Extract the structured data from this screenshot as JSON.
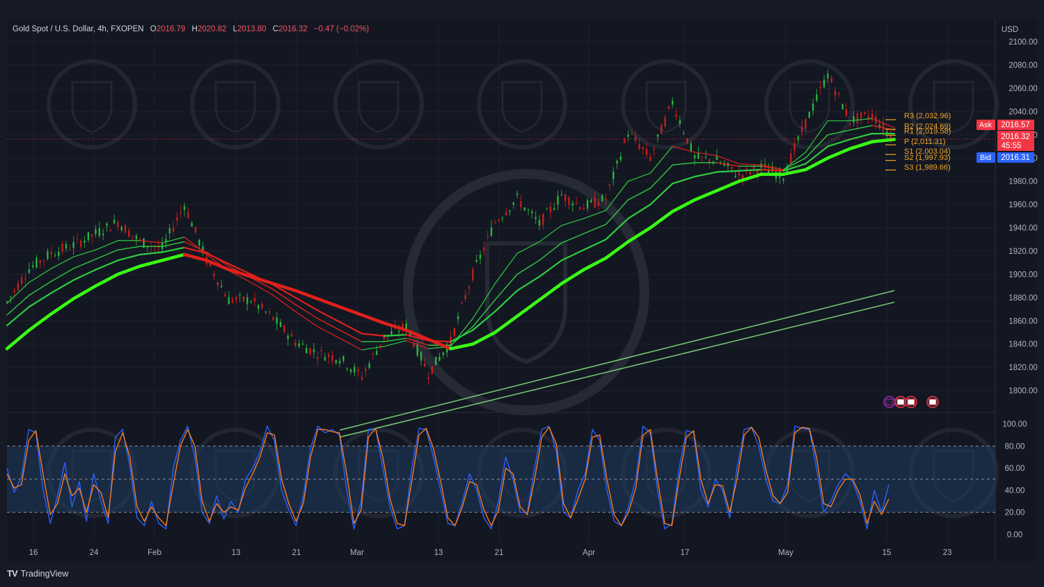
{
  "header": {
    "symbol": "Gold Spot / U.S. Dollar, 4h, FXOPEN",
    "open_label": "O",
    "open": "2016.79",
    "high_label": "H",
    "high": "2020.82",
    "low_label": "L",
    "low": "2013.80",
    "close_label": "C",
    "close": "2016.32",
    "change": "−0.47 (−0.02%)"
  },
  "currency": "USD",
  "brand": {
    "logo": "TV",
    "name": "TradingView"
  },
  "colors": {
    "background": "#131722",
    "grid": "#1e222d",
    "text": "#b2b5be",
    "bull": "#2ecc40",
    "bull_bright": "#39ff14",
    "bear": "#e0201c",
    "pivot": "#f5a623",
    "ask": "#f23645",
    "bid": "#2962ff",
    "stoch_k": "#2962ff",
    "stoch_d": "#f57c20",
    "band": "#1f3a5f"
  },
  "chart_data": [
    {
      "type": "line",
      "title": "Gold Spot / U.S. Dollar, 4h, FXOPEN",
      "x_ticks": [
        "16",
        "24",
        "Feb",
        "13",
        "21",
        "Mar",
        "13",
        "21",
        "Apr",
        "17",
        "May",
        "15",
        "23"
      ],
      "y_ticks": [
        1800,
        1820,
        1840,
        1860,
        1880,
        1900,
        1920,
        1940,
        1960,
        1980,
        2000,
        2020,
        2040,
        2060,
        2080,
        2100
      ],
      "y_tick_labels": [
        "1800.00",
        "1820.00",
        "1840.00",
        "1860.00",
        "1880.00",
        "1900.00",
        "1920.00",
        "1940.00",
        "1960.00",
        "1980.00",
        "2000.00",
        "2020.00",
        "2040.00",
        "2060.00",
        "2080.00",
        "2100.00"
      ],
      "ylim": [
        1783,
        2103
      ],
      "x": [
        0,
        5,
        10,
        15,
        20,
        25,
        30,
        35,
        40,
        45,
        50,
        55,
        60,
        65,
        70,
        75,
        80,
        85,
        90,
        95,
        100,
        105,
        110,
        115,
        120,
        125,
        130,
        135,
        140,
        145,
        150,
        155,
        160,
        165,
        170,
        175,
        180,
        185,
        190,
        195,
        200
      ],
      "close_path": [
        1876,
        1905,
        1918,
        1925,
        1935,
        1945,
        1928,
        1922,
        1960,
        1912,
        1878,
        1878,
        1862,
        1842,
        1832,
        1828,
        1812,
        1846,
        1855,
        1815,
        1842,
        1900,
        1945,
        1965,
        1943,
        1968,
        1958,
        1965,
        2022,
        2000,
        2048,
        2000,
        1998,
        1985,
        1992,
        1985,
        2030,
        2072,
        2032,
        2037,
        2015
      ],
      "series": [
        {
          "values": [
            1875,
            1893,
            1905,
            1915,
            1921,
            1929,
            1929,
            1927,
            1932,
            1917,
            1903,
            1893,
            1882,
            1868,
            1855,
            1845,
            1835,
            1838,
            1843,
            1836,
            1838,
            1862,
            1892,
            1918,
            1928,
            1942,
            1948,
            1955,
            1980,
            1987,
            2010,
            2005,
            2002,
            1995,
            1994,
            1990,
            2005,
            2032,
            2032,
            2034,
            2026
          ]
        },
        {
          "values": [
            1865,
            1882,
            1894,
            1905,
            1913,
            1921,
            1924,
            1924,
            1928,
            1919,
            1907,
            1897,
            1887,
            1874,
            1862,
            1852,
            1842,
            1842,
            1845,
            1839,
            1839,
            1855,
            1878,
            1900,
            1912,
            1927,
            1935,
            1943,
            1964,
            1974,
            1994,
            1996,
            1996,
            1993,
            1993,
            1990,
            2000,
            2020,
            2024,
            2028,
            2024
          ]
        },
        {
          "values": [
            1856,
            1872,
            1884,
            1895,
            1904,
            1912,
            1917,
            1919,
            1923,
            1918,
            1909,
            1900,
            1891,
            1880,
            1869,
            1859,
            1849,
            1847,
            1848,
            1843,
            1842,
            1852,
            1868,
            1886,
            1898,
            1912,
            1921,
            1930,
            1948,
            1960,
            1978,
            1984,
            1988,
            1989,
            1990,
            1989,
            1995,
            2010,
            2016,
            2021,
            2021
          ]
        },
        {
          "values": [
            1836,
            1852,
            1866,
            1879,
            1890,
            1900,
            1907,
            1912,
            1917,
            1912,
            1904,
            1898,
            1892,
            1886,
            1879,
            1872,
            1865,
            1858,
            1852,
            1844,
            1836,
            1840,
            1850,
            1864,
            1878,
            1892,
            1904,
            1914,
            1928,
            1940,
            1954,
            1964,
            1972,
            1980,
            1986,
            1986,
            1990,
            2000,
            2008,
            2014,
            2016
          ]
        },
        {
          "x": [
            75,
            200
          ],
          "values": [
            1766,
            1886
          ]
        },
        {
          "x": [
            75,
            200
          ],
          "values": [
            1760,
            1876
          ]
        }
      ],
      "current_price": 2016.32,
      "ask_label": "Ask",
      "ask_price": "2016.57",
      "bid_label": "Bid",
      "bid_price": "2016.31",
      "close_label": "2016.32",
      "countdown": "45:55",
      "pivots": [
        {
          "label": "R3 (2,032.96)",
          "value": 2032.96
        },
        {
          "label": "R2 (2,024.69)",
          "value": 2024.69
        },
        {
          "label": "R1 (2,019.58)",
          "value": 2019.58
        },
        {
          "label": "P (2,011.31)",
          "value": 2011.31
        },
        {
          "label": "S1 (2,003.04)",
          "value": 2003.04
        },
        {
          "label": "S2 (1,997.93)",
          "value": 1997.93
        },
        {
          "label": "S3 (1,989.66)",
          "value": 1989.66
        }
      ]
    },
    {
      "type": "line",
      "title": "",
      "y_ticks": [
        0,
        20,
        40,
        60,
        80,
        100
      ],
      "y_tick_labels": [
        "0.00",
        "20.00",
        "40.00",
        "60.00",
        "80.00",
        "100.00"
      ],
      "ylim": [
        -6,
        106
      ],
      "band": [
        20,
        80
      ],
      "midline": 50,
      "x_step": 2,
      "series": [
        {
          "values": [
            60,
            38,
            52,
            95,
            92,
            40,
            10,
            35,
            65,
            25,
            48,
            12,
            55,
            30,
            10,
            88,
            95,
            62,
            15,
            8,
            30,
            10,
            5,
            60,
            85,
            98,
            70,
            20,
            10,
            35,
            14,
            30,
            20,
            50,
            60,
            75,
            98,
            85,
            40,
            22,
            8,
            35,
            78,
            98,
            92,
            95,
            90,
            40,
            5,
            30,
            95,
            96,
            60,
            25,
            5,
            8,
            60,
            96,
            95,
            70,
            40,
            10,
            8,
            30,
            55,
            40,
            15,
            5,
            30,
            70,
            50,
            20,
            20,
            60,
            95,
            98,
            75,
            20,
            15,
            40,
            55,
            95,
            85,
            40,
            12,
            8,
            25,
            50,
            98,
            92,
            40,
            5,
            10,
            60,
            94,
            92,
            40,
            25,
            50,
            40,
            15,
            60,
            95,
            97,
            80,
            50,
            30,
            28,
            45,
            98,
            96,
            95,
            60,
            20,
            30,
            45,
            55,
            48,
            30,
            5,
            40,
            20,
            45
          ]
        },
        {
          "values": [
            55,
            42,
            45,
            85,
            94,
            55,
            18,
            28,
            55,
            35,
            42,
            20,
            45,
            38,
            15,
            75,
            92,
            70,
            25,
            12,
            25,
            15,
            8,
            45,
            80,
            95,
            80,
            30,
            12,
            28,
            20,
            25,
            22,
            42,
            55,
            70,
            92,
            90,
            50,
            28,
            12,
            28,
            70,
            95,
            95,
            93,
            92,
            55,
            10,
            22,
            88,
            96,
            70,
            32,
            10,
            8,
            48,
            90,
            96,
            78,
            48,
            15,
            8,
            25,
            48,
            45,
            22,
            8,
            22,
            60,
            55,
            25,
            18,
            50,
            88,
            97,
            82,
            28,
            15,
            32,
            50,
            88,
            90,
            50,
            18,
            8,
            20,
            42,
            90,
            95,
            50,
            10,
            8,
            50,
            88,
            94,
            50,
            28,
            45,
            44,
            20,
            50,
            90,
            97,
            88,
            58,
            35,
            28,
            38,
            92,
            97,
            96,
            70,
            28,
            25,
            40,
            50,
            50,
            36,
            10,
            30,
            18,
            32
          ]
        }
      ]
    }
  ],
  "x_axis_date_ticks": [
    "16",
    "24",
    "Feb",
    "13",
    "21",
    "Mar",
    "13",
    "21",
    "Apr",
    "17",
    "May",
    "15",
    "23"
  ]
}
